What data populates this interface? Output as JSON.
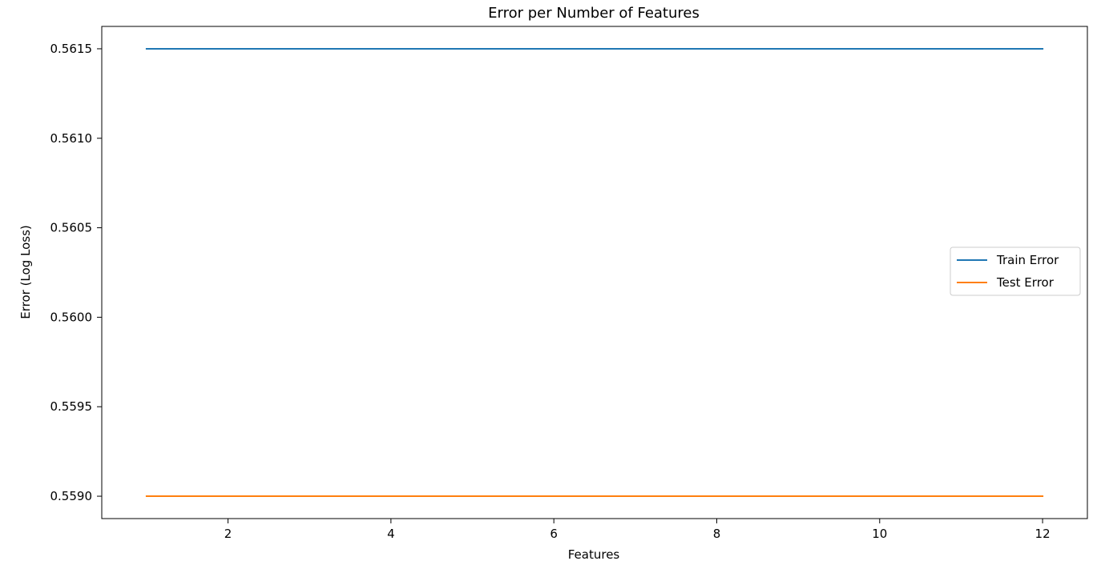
{
  "chart_data": {
    "type": "line",
    "title": "Error per Number of Features",
    "xlabel": "Features",
    "ylabel": "Error (Log Loss)",
    "xlim": [
      0.45,
      12.55
    ],
    "ylim": [
      0.558875,
      0.561625
    ],
    "x_ticks": [
      2,
      4,
      6,
      8,
      10,
      12
    ],
    "y_ticks": [
      0.559,
      0.5595,
      0.56,
      0.5605,
      0.561,
      0.5615
    ],
    "x_tick_labels": [
      "2",
      "4",
      "6",
      "8",
      "10",
      "12"
    ],
    "y_tick_labels": [
      "0.5590",
      "0.5595",
      "0.5600",
      "0.5605",
      "0.5610",
      "0.5615"
    ],
    "grid": false,
    "legend_position": "center-right",
    "x": [
      1,
      2,
      3,
      4,
      5,
      6,
      7,
      8,
      9,
      10,
      11,
      12
    ],
    "series": [
      {
        "name": "Train Error",
        "color": "#1f77b4",
        "values": [
          0.5615,
          0.5615,
          0.5615,
          0.5615,
          0.5615,
          0.5615,
          0.5615,
          0.5615,
          0.5615,
          0.5615,
          0.5615,
          0.5615
        ]
      },
      {
        "name": "Test Error",
        "color": "#ff7f0e",
        "values": [
          0.559,
          0.559,
          0.559,
          0.559,
          0.559,
          0.559,
          0.559,
          0.559,
          0.559,
          0.559,
          0.559,
          0.559
        ]
      }
    ]
  }
}
